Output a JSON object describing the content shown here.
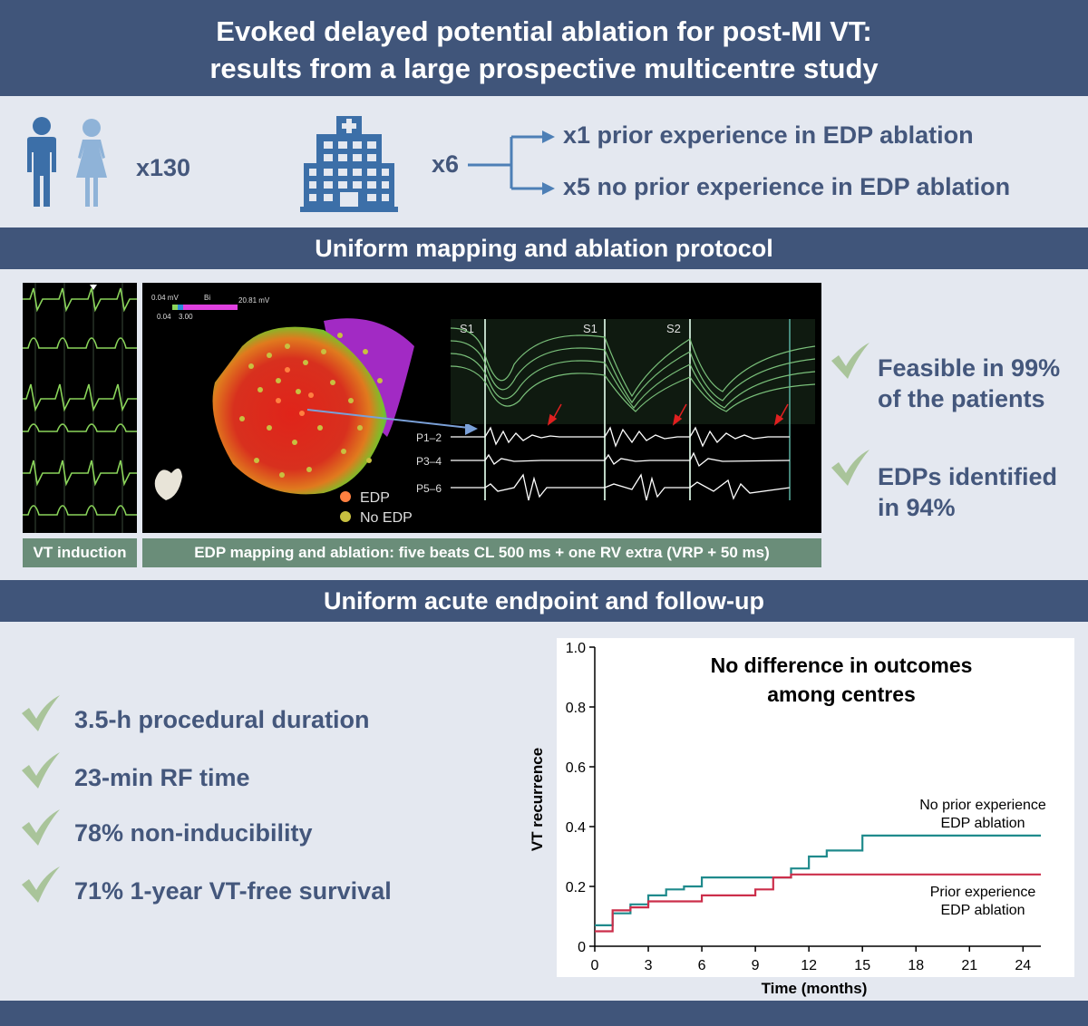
{
  "header": {
    "title_line1": "Evoked delayed potential ablation for post-MI VT:",
    "title_line2": "results from a large prospective multicentre study"
  },
  "cohort": {
    "patients_count": "x130",
    "centres_count": "x6",
    "branch_prior": "x1 prior experience in EDP ablation",
    "branch_no_prior": "x5 no prior experience in EDP ablation",
    "icons": [
      "male-person-icon",
      "female-person-icon",
      "hospital-icon"
    ]
  },
  "protocol": {
    "section_title": "Uniform mapping and ablation protocol",
    "vt_caption": "VT induction",
    "map_caption": "EDP mapping and ablation: five beats CL 500 ms + one RV extra (VRP + 50 ms)",
    "map_scale": {
      "low": "0.04 mV",
      "mode": "Bi",
      "high": "20.81 mV",
      "tick1": "0.04",
      "tick2": "3.00"
    },
    "legend": {
      "edp": "EDP",
      "no_edp": "No EDP"
    },
    "egm_labels": {
      "s1a": "S1",
      "s1b": "S1",
      "s2": "S2",
      "p12": "P1–2",
      "p34": "P3–4",
      "p56": "P5–6"
    },
    "findings": [
      {
        "line1": "Feasible in 99%",
        "line2": "of the patients"
      },
      {
        "line1": "EDPs identified",
        "line2": "in 94%"
      }
    ]
  },
  "followup": {
    "section_title": "Uniform acute endpoint and follow-up",
    "results": [
      "3.5-h procedural duration",
      "23-min RF time",
      "78% non-inducibility",
      "71% 1-year VT-free survival"
    ]
  },
  "colors": {
    "band": "#40557a",
    "text": "#44577c",
    "check": "#a9c49a",
    "caption": "#6a8d79",
    "teal": "#1f8a8c",
    "red": "#cc2e4a"
  },
  "chart_data": {
    "type": "line",
    "title": "No difference in outcomes among centres",
    "xlabel": "Time (months)",
    "ylabel": "VT recurrence",
    "xlim": [
      0,
      25
    ],
    "ylim": [
      0,
      1.0
    ],
    "xticks": [
      "0",
      "3",
      "6",
      "9",
      "12",
      "15",
      "18",
      "21",
      "24"
    ],
    "yticks": [
      "0",
      "0.2",
      "0.4",
      "0.6",
      "0.8",
      "1.0"
    ],
    "step": true,
    "series": [
      {
        "name": "No prior experience EDP ablation",
        "label_line1": "No prior experience",
        "label_line2": "EDP ablation",
        "color": "#1f8a8c",
        "x": [
          0,
          1,
          2,
          3,
          4,
          5,
          6,
          10,
          11,
          12,
          13,
          15,
          25
        ],
        "y": [
          0.07,
          0.11,
          0.14,
          0.17,
          0.19,
          0.2,
          0.23,
          0.23,
          0.26,
          0.3,
          0.32,
          0.37,
          0.37
        ]
      },
      {
        "name": "Prior experience EDP ablation",
        "label_line1": "Prior experience",
        "label_line2": "EDP ablation",
        "color": "#cc2e4a",
        "x": [
          0,
          1,
          2,
          3,
          6,
          9,
          10,
          11,
          25
        ],
        "y": [
          0.05,
          0.12,
          0.13,
          0.15,
          0.17,
          0.19,
          0.23,
          0.24,
          0.24
        ]
      }
    ]
  }
}
